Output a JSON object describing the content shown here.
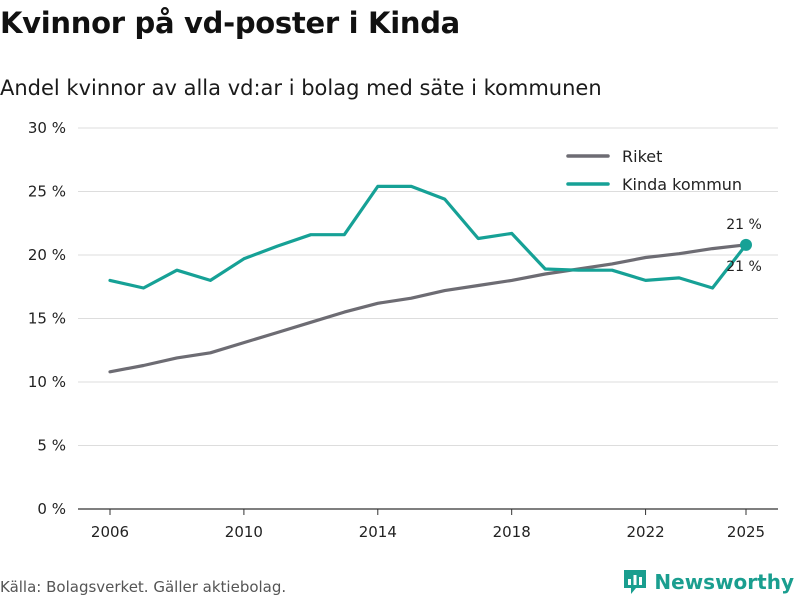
{
  "title": "Kvinnor på vd-poster i Kinda",
  "subtitle": "Andel kvinnor av alla vd:ar i bolag med säte i kommunen",
  "source": "Källa: Bolagsverket. Gäller aktiebolag.",
  "brand": "Newsworthy",
  "colors": {
    "riket": "#6d6c73",
    "kinda": "#16a196",
    "grid": "#dddddd",
    "brand": "#1a9e8f"
  },
  "chart_data": {
    "type": "line",
    "title": "Kvinnor på vd-poster i Kinda",
    "subtitle": "Andel kvinnor av alla vd:ar i bolag med säte i kommunen",
    "xlabel": "",
    "ylabel": "",
    "x": [
      2006,
      2007,
      2008,
      2009,
      2010,
      2011,
      2012,
      2013,
      2014,
      2015,
      2016,
      2017,
      2018,
      2019,
      2020,
      2021,
      2022,
      2023,
      2024,
      2025
    ],
    "xlim": [
      2006,
      2025
    ],
    "ylim": [
      0,
      30
    ],
    "xticks": [
      2006,
      2010,
      2014,
      2018,
      2022,
      2025
    ],
    "xtick_labels": [
      "2006",
      "2010",
      "2014",
      "2018",
      "2022",
      "2025"
    ],
    "yticks": [
      0,
      5,
      10,
      15,
      20,
      25,
      30
    ],
    "ytick_labels": [
      "0 %",
      "5 %",
      "10 %",
      "15 %",
      "20 %",
      "25 %",
      "30 %"
    ],
    "grid": true,
    "legend_position": "top-right",
    "series": [
      {
        "name": "Riket",
        "values": [
          10.8,
          11.3,
          11.9,
          12.3,
          13.1,
          13.9,
          14.7,
          15.5,
          16.2,
          16.6,
          17.2,
          17.6,
          18.0,
          18.5,
          18.9,
          19.3,
          19.8,
          20.1,
          20.5,
          20.8
        ]
      },
      {
        "name": "Kinda kommun",
        "values": [
          18.0,
          17.4,
          18.8,
          18.0,
          19.7,
          20.7,
          21.6,
          21.6,
          25.4,
          25.4,
          24.4,
          21.3,
          21.7,
          18.9,
          18.8,
          18.8,
          18.0,
          18.2,
          17.4,
          20.8
        ]
      }
    ],
    "annotations": [
      {
        "series": "Riket",
        "x": 2025,
        "label": "21 %",
        "placement": "above"
      },
      {
        "series": "Kinda kommun",
        "x": 2025,
        "label": "21 %",
        "placement": "below"
      }
    ]
  }
}
